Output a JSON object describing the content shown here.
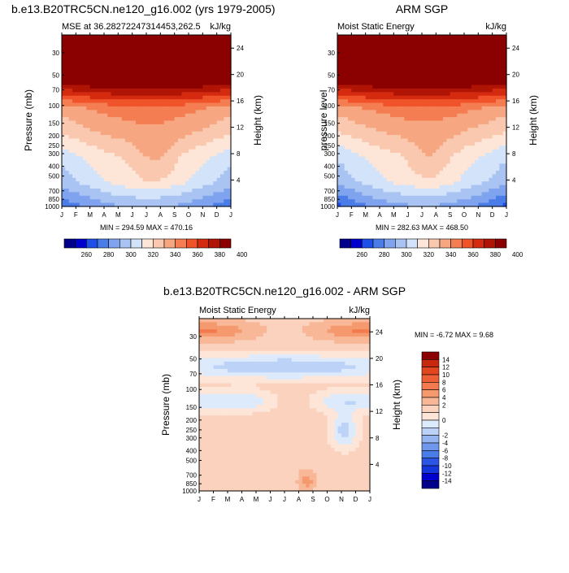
{
  "colors": {
    "abs_palette": [
      "#00008b",
      "#0000cd",
      "#1e4fe6",
      "#4a7de8",
      "#7fa3ee",
      "#a9c3f2",
      "#d2e3fa",
      "#fde6d8",
      "#f9c8ae",
      "#f6a680",
      "#f47d52",
      "#f0532a",
      "#d32a10",
      "#b01404",
      "#8b0000"
    ],
    "diff_palette": [
      "#00008b",
      "#0000cd",
      "#1535dd",
      "#2b55e4",
      "#4a7de8",
      "#6f97ec",
      "#96b5f0",
      "#bcd2f6",
      "#dceafc",
      "#fde6d8",
      "#fad2bd",
      "#f8b796",
      "#f5996f",
      "#f37a4f",
      "#ef5f35",
      "#e2461f",
      "#c8280e",
      "#8b0000"
    ]
  },
  "chart_data": [
    {
      "type": "heatmap",
      "title": "b.e13.B20TRC5CN.ne120_g16.002 (yrs 1979-2005)",
      "subtitle_left": "MSE at 36.28272247314453,262.5",
      "subtitle_right": "kJ/kg",
      "xlabel": "",
      "ylabel": "Pressure (mb)",
      "ylabel_right": "Height (km)",
      "x": [
        "J",
        "F",
        "M",
        "A",
        "M",
        "J",
        "J",
        "A",
        "S",
        "O",
        "N",
        "D",
        "J"
      ],
      "y_pressure_ticks": [
        "30",
        "50",
        "70",
        "100",
        "150",
        "200",
        "250",
        "300",
        "400",
        "500",
        "700",
        "850",
        "1000"
      ],
      "y_height_ticks": [
        "24",
        "20",
        "16",
        "12",
        "8",
        "4"
      ],
      "pressure_range": [
        1000,
        20
      ],
      "height_range": [
        0,
        26
      ],
      "min_max_text": "MIN = 294.59 MAX = 470.16",
      "colorbar_labels": [
        "260",
        "280",
        "300",
        "320",
        "340",
        "360",
        "380",
        "400"
      ],
      "colorbar_levels": [
        250,
        260,
        270,
        280,
        290,
        300,
        310,
        320,
        330,
        340,
        350,
        360,
        370,
        380,
        390,
        400,
        410
      ],
      "field": {
        "z": [
          292,
          315,
          322,
          338,
          350,
          395,
          425,
          465
        ],
        "seasonal_amp": [
          18,
          22,
          18,
          14,
          12,
          10,
          8,
          6
        ]
      }
    },
    {
      "type": "heatmap",
      "title": "ARM SGP",
      "subtitle_left": "Moist Static Energy",
      "subtitle_right": "kJ/kg",
      "xlabel": "",
      "ylabel": "pressure level",
      "ylabel_right": "Height (km)",
      "x": [
        "J",
        "F",
        "M",
        "A",
        "M",
        "J",
        "J",
        "A",
        "S",
        "O",
        "N",
        "D",
        "J"
      ],
      "y_pressure_ticks": [
        "30",
        "50",
        "70",
        "100",
        "150",
        "200",
        "250",
        "300",
        "400",
        "500",
        "700",
        "850",
        "1000"
      ],
      "y_height_ticks": [
        "24",
        "20",
        "16",
        "12",
        "8",
        "4"
      ],
      "pressure_range": [
        1000,
        20
      ],
      "height_range": [
        0,
        26
      ],
      "min_max_text": "MIN = 282.63 MAX = 468.50",
      "colorbar_labels": [
        "260",
        "280",
        "300",
        "320",
        "340",
        "360",
        "380",
        "400"
      ],
      "colorbar_levels": [
        250,
        260,
        270,
        280,
        290,
        300,
        310,
        320,
        330,
        340,
        350,
        360,
        370,
        380,
        390,
        400,
        410
      ],
      "field": {
        "z": [
          288,
          313,
          320,
          336,
          350,
          394,
          424,
          463
        ],
        "seasonal_amp": [
          22,
          22,
          18,
          14,
          12,
          10,
          8,
          6
        ]
      }
    },
    {
      "type": "heatmap",
      "title": "b.e13.B20TRC5CN.ne120_g16.002 - ARM SGP",
      "subtitle_left": "Moist Static Energy",
      "subtitle_right": "kJ/kg",
      "xlabel": "",
      "ylabel": "Pressure (mb)",
      "ylabel_right": "Height (km)",
      "x": [
        "J",
        "F",
        "M",
        "A",
        "M",
        "J",
        "J",
        "A",
        "S",
        "O",
        "N",
        "D",
        "J"
      ],
      "y_pressure_ticks": [
        "30",
        "50",
        "70",
        "100",
        "150",
        "200",
        "250",
        "300",
        "400",
        "500",
        "700",
        "850",
        "1000"
      ],
      "y_height_ticks": [
        "24",
        "20",
        "16",
        "12",
        "8",
        "4"
      ],
      "pressure_range": [
        1000,
        20
      ],
      "height_range": [
        0,
        26
      ],
      "min_max_text": "MIN =  -6.72 MAX =   9.68",
      "colorbar_labels": [
        "14",
        "12",
        "10",
        "8",
        "6",
        "4",
        "2",
        "0",
        "-2",
        "-4",
        "-6",
        "-8",
        "-10",
        "-12",
        "-14"
      ],
      "colorbar_levels": [
        -16,
        -14,
        -12,
        -10,
        -8,
        -6,
        -4,
        -2,
        -1,
        0,
        1,
        2,
        4,
        6,
        8,
        10,
        12,
        14,
        16
      ]
    }
  ]
}
